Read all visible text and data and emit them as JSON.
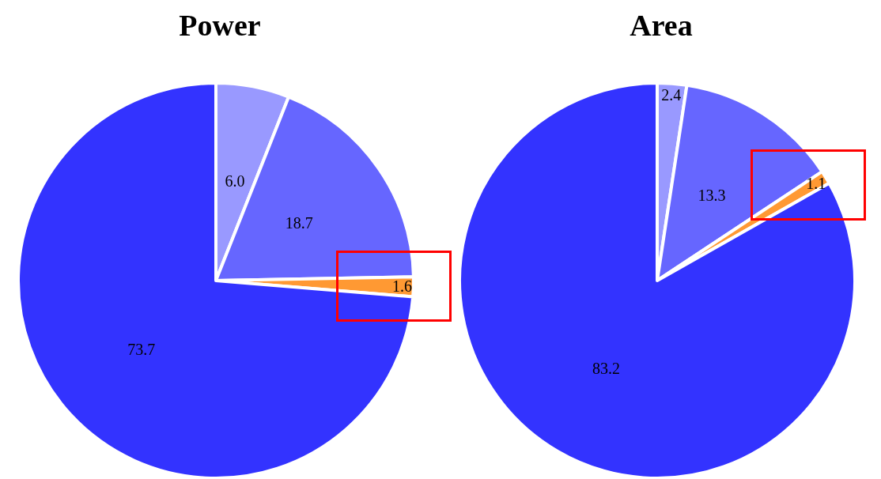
{
  "chart_data": [
    {
      "type": "pie",
      "title": "Power",
      "categories": [
        null,
        null,
        null,
        null
      ],
      "values": [
        6.0,
        18.7,
        1.6,
        73.7
      ],
      "value_labels": [
        "6.0",
        "18.7",
        "1.6",
        "73.7"
      ],
      "colors": [
        "#9999ff",
        "#6666ff",
        "#ff9933",
        "#3333ff"
      ]
    },
    {
      "type": "pie",
      "title": "Area",
      "categories": [
        null,
        null,
        null,
        null
      ],
      "values": [
        2.4,
        13.3,
        1.1,
        83.2
      ],
      "value_labels": [
        "2.4",
        "13.3",
        "1.1",
        "83.2"
      ],
      "colors": [
        "#9999ff",
        "#6666ff",
        "#ff9933",
        "#3333ff"
      ]
    }
  ]
}
